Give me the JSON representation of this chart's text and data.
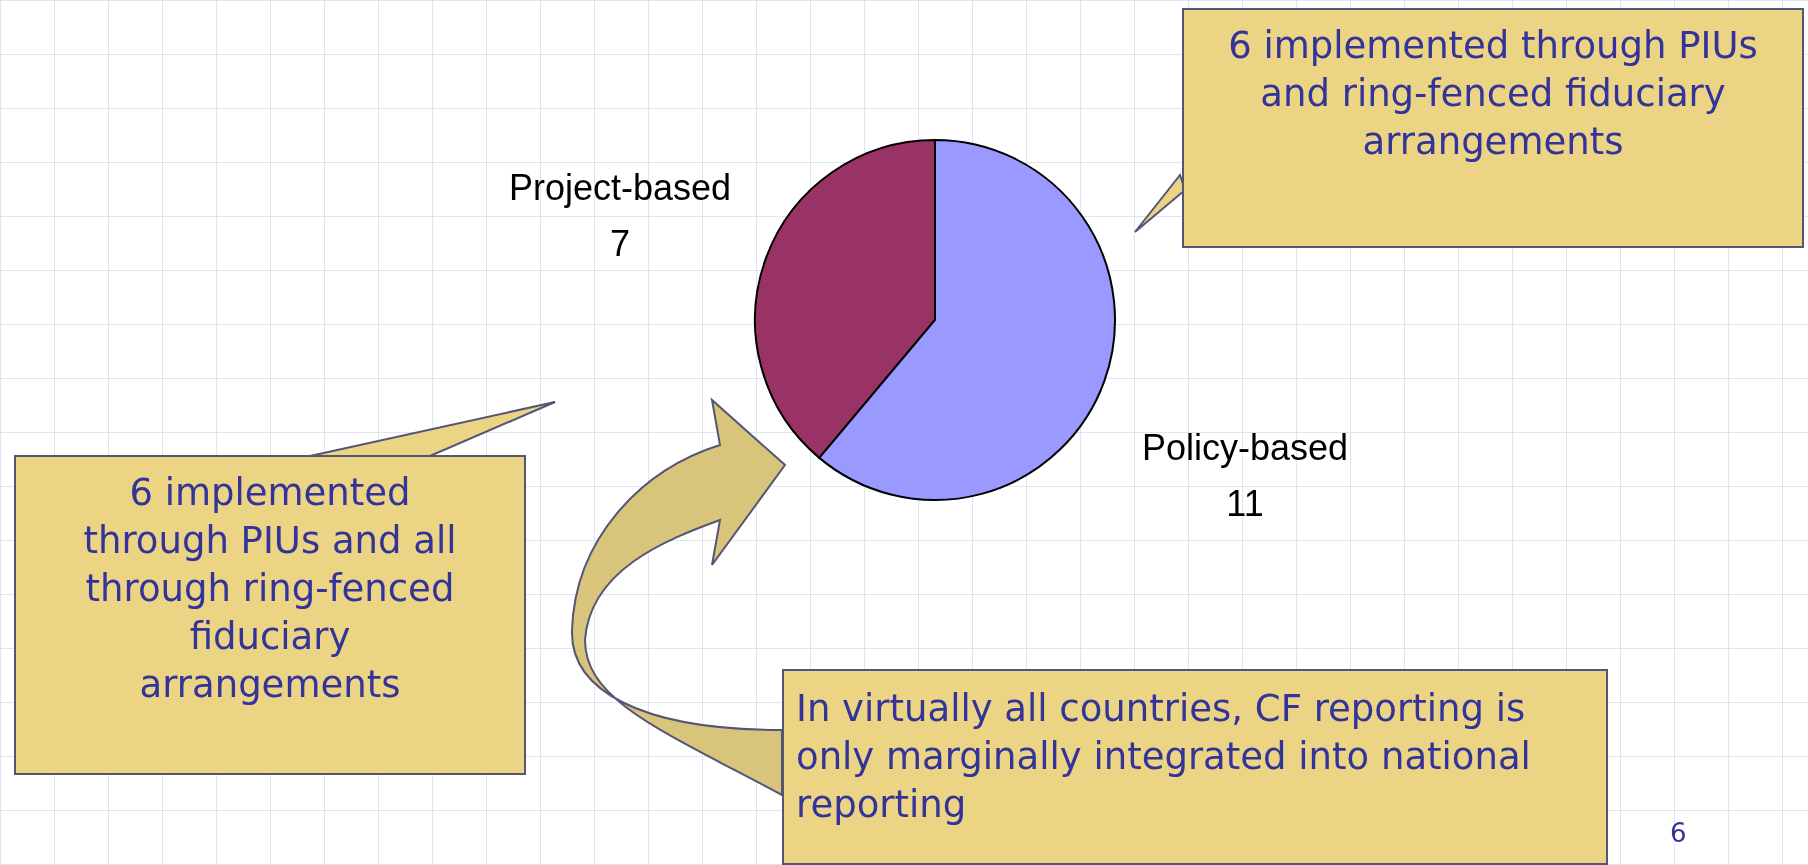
{
  "chart_data": {
    "type": "pie",
    "categories": [
      "Project-based",
      "Policy-based"
    ],
    "values": [
      7,
      11
    ],
    "colors": [
      "#993366",
      "#9999ff"
    ],
    "data_labels": true,
    "legend": false,
    "annotations": [
      "6 implemented through PIUs and ring-fenced fiduciary arrangements",
      "6 implemented through PIUs and all through ring-fenced fiduciary arrangements",
      "In virtually all countries, CF reporting is only marginally integrated into national reporting",
      "6"
    ]
  }
}
